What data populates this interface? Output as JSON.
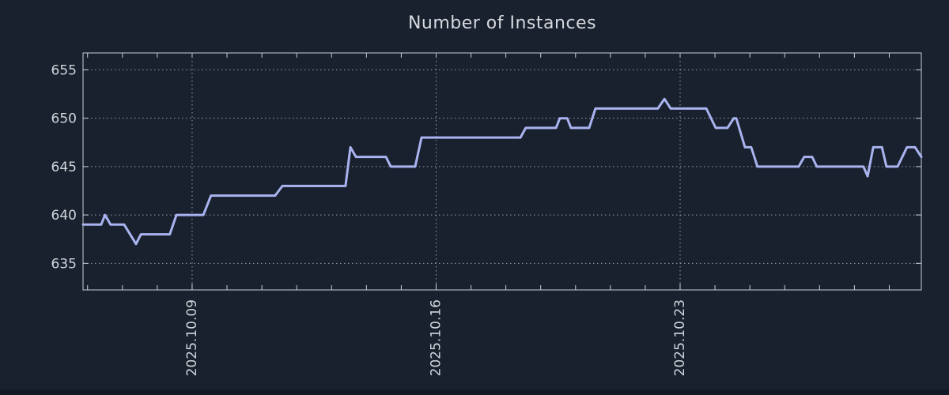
{
  "page": {
    "background_color": "#19212e",
    "bottom_strip_color": "#121926"
  },
  "chart": {
    "title": "Number of Instances"
  },
  "colors": {
    "line": "#a9b3ef",
    "frame": "#c9ced6",
    "grid": "#98a0b0",
    "text": "#d0d4da"
  },
  "chart_data": {
    "type": "line",
    "title": "Number of Instances",
    "x_unit": "day of October 2025",
    "xlim": [
      5.87,
      29.92
    ],
    "ylim": [
      632.25,
      656.75
    ],
    "yticks": [
      635,
      640,
      645,
      650,
      655
    ],
    "xticks": [
      {
        "value": 9,
        "label": "2025.10.09"
      },
      {
        "value": 16,
        "label": "2025.10.16"
      },
      {
        "value": 23,
        "label": "2025.10.23"
      }
    ],
    "x_minor_ticks": [
      6,
      7,
      8,
      9,
      10,
      11,
      12,
      13,
      14,
      15,
      16,
      17,
      18,
      19,
      20,
      21,
      22,
      23,
      24,
      25,
      26,
      27,
      28,
      29
    ],
    "grid": true,
    "legend": false,
    "points": [
      [
        5.87,
        639
      ],
      [
        6.39,
        639
      ],
      [
        6.5,
        640
      ],
      [
        6.66,
        639
      ],
      [
        7.05,
        639
      ],
      [
        7.39,
        637
      ],
      [
        7.53,
        638
      ],
      [
        8.36,
        638
      ],
      [
        8.55,
        640
      ],
      [
        9.32,
        640
      ],
      [
        9.54,
        642
      ],
      [
        11.38,
        642
      ],
      [
        11.59,
        643
      ],
      [
        13.4,
        643
      ],
      [
        13.54,
        647
      ],
      [
        13.7,
        646
      ],
      [
        14.56,
        646
      ],
      [
        14.7,
        645
      ],
      [
        15.4,
        645
      ],
      [
        15.58,
        648
      ],
      [
        18.42,
        648
      ],
      [
        18.57,
        649
      ],
      [
        19.44,
        649
      ],
      [
        19.55,
        650
      ],
      [
        19.76,
        650
      ],
      [
        19.87,
        649
      ],
      [
        20.39,
        649
      ],
      [
        20.57,
        651
      ],
      [
        22.36,
        651
      ],
      [
        22.55,
        652
      ],
      [
        22.73,
        651
      ],
      [
        23.75,
        651
      ],
      [
        24.02,
        649
      ],
      [
        24.36,
        649
      ],
      [
        24.54,
        650
      ],
      [
        24.61,
        650
      ],
      [
        24.86,
        647
      ],
      [
        25.04,
        647
      ],
      [
        25.22,
        645
      ],
      [
        26.4,
        645
      ],
      [
        26.56,
        646
      ],
      [
        26.79,
        646
      ],
      [
        26.92,
        645
      ],
      [
        28.26,
        645
      ],
      [
        28.38,
        644
      ],
      [
        28.54,
        647
      ],
      [
        28.79,
        647
      ],
      [
        28.92,
        645
      ],
      [
        29.24,
        645
      ],
      [
        29.51,
        647
      ],
      [
        29.74,
        647
      ],
      [
        29.92,
        646
      ]
    ]
  }
}
